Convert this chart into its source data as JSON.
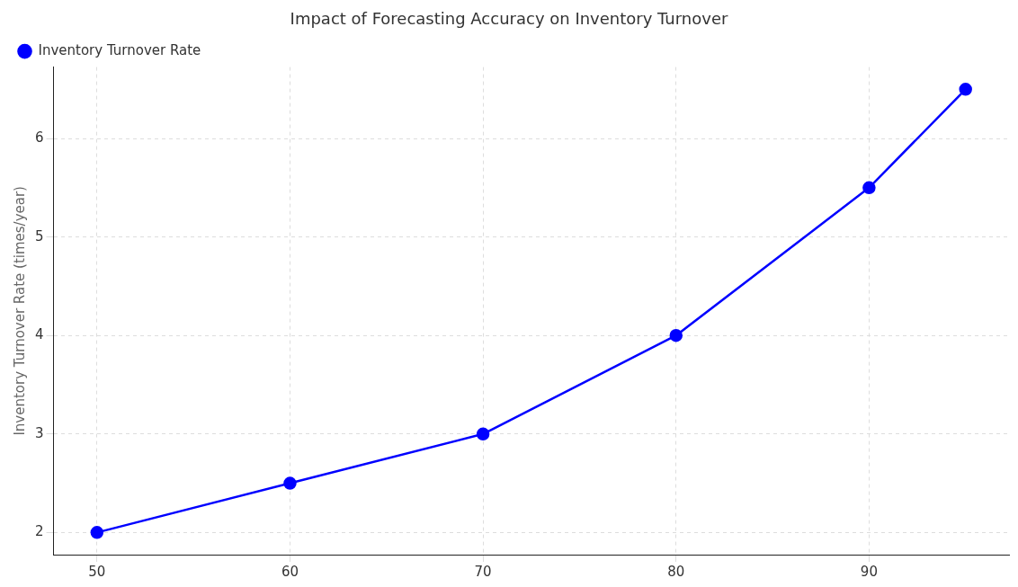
{
  "chart_data": {
    "type": "line",
    "title": "Impact of Forecasting Accuracy on Inventory Turnover",
    "ylabel": "Inventory Turnover Rate (times/year)",
    "x": [
      50,
      60,
      70,
      80,
      90,
      95
    ],
    "series": [
      {
        "name": "Inventory Turnover Rate",
        "color": "#0000ff",
        "values": [
          2,
          2.5,
          3,
          4,
          5.5,
          6.5
        ]
      }
    ],
    "xlim": [
      47.75,
      97.25
    ],
    "ylim": [
      1.775,
      6.725
    ],
    "xticks": [
      50,
      60,
      70,
      80,
      90
    ],
    "yticks": [
      2,
      3,
      4,
      5,
      6
    ],
    "grid": true,
    "legend": "top left",
    "marker": "circle",
    "line_style": "solid"
  }
}
